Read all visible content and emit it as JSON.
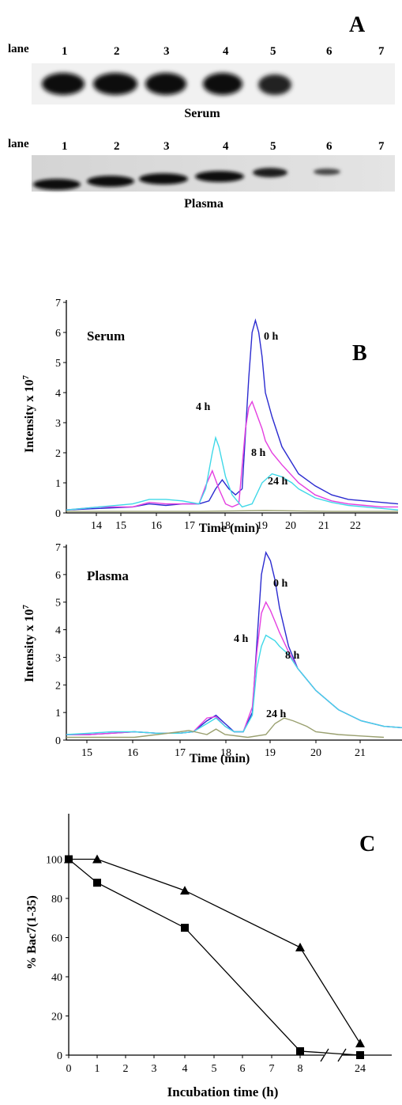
{
  "panel_a": {
    "letter": "A",
    "lane_label": "lane",
    "lanes": [
      "1",
      "2",
      "3",
      "4",
      "5",
      "6",
      "7"
    ],
    "serum_label": "Serum",
    "plasma_label": "Plasma"
  },
  "chart_data": [
    {
      "type": "line",
      "panel": "B",
      "panel_letter": "B",
      "inset_label": "Serum",
      "xlabel": "Time (min)",
      "ylabel": "Intensity x 10",
      "ylabel_exp": "7",
      "x_tick_labels": [
        "14",
        "15",
        "16",
        "17",
        "18",
        "19",
        "20",
        "21",
        "22"
      ],
      "y_ticks": [
        0,
        1,
        2,
        3,
        4,
        5,
        6,
        7
      ],
      "xlim": [
        13,
        23
      ],
      "ylim": [
        0,
        7
      ],
      "colors": {
        "0 h": "#2b2bd0",
        "4 h": "#e43fe0",
        "8 h": "#3fd8e8",
        "24 h": "#9aa070"
      },
      "series": [
        {
          "name": "0 h",
          "x": [
            13,
            14,
            15,
            15.5,
            16,
            16.5,
            17,
            17.3,
            17.5,
            17.7,
            17.9,
            18.1,
            18.3,
            18.5,
            18.6,
            18.7,
            18.8,
            18.9,
            19.0,
            19.2,
            19.5,
            20,
            20.5,
            21,
            21.5,
            22,
            22.5,
            23
          ],
          "y": [
            0.1,
            0.15,
            0.2,
            0.3,
            0.25,
            0.3,
            0.3,
            0.4,
            0.8,
            1.1,
            0.8,
            0.6,
            0.8,
            4.5,
            6.0,
            6.4,
            6.0,
            5.2,
            4.0,
            3.2,
            2.2,
            1.3,
            0.9,
            0.6,
            0.45,
            0.4,
            0.35,
            0.3
          ]
        },
        {
          "name": "4 h",
          "x": [
            13,
            14,
            15,
            15.5,
            16,
            16.5,
            17,
            17.2,
            17.4,
            17.6,
            17.8,
            18.0,
            18.2,
            18.4,
            18.5,
            18.6,
            18.7,
            18.8,
            18.9,
            19.0,
            19.2,
            19.5,
            20,
            20.5,
            21,
            21.5,
            22,
            22.5,
            23
          ],
          "y": [
            0.1,
            0.2,
            0.2,
            0.35,
            0.3,
            0.3,
            0.3,
            0.9,
            1.4,
            0.8,
            0.3,
            0.2,
            0.3,
            2.8,
            3.5,
            3.7,
            3.4,
            3.1,
            2.8,
            2.4,
            2.0,
            1.6,
            1.0,
            0.6,
            0.4,
            0.3,
            0.25,
            0.2,
            0.2
          ]
        },
        {
          "name": "8 h",
          "x": [
            13,
            14,
            15,
            15.5,
            16,
            16.5,
            17,
            17.2,
            17.4,
            17.5,
            17.6,
            17.8,
            18.0,
            18.3,
            18.6,
            18.9,
            19.2,
            19.5,
            19.8,
            20,
            20.5,
            21,
            21.5,
            22,
            22.5,
            23
          ],
          "y": [
            0.1,
            0.2,
            0.3,
            0.45,
            0.45,
            0.4,
            0.3,
            0.8,
            2.0,
            2.5,
            2.2,
            1.2,
            0.6,
            0.2,
            0.3,
            1.0,
            1.3,
            1.2,
            1.0,
            0.8,
            0.5,
            0.35,
            0.25,
            0.2,
            0.15,
            0.1
          ]
        },
        {
          "name": "24 h",
          "x": [
            13,
            15,
            17,
            19,
            21,
            23
          ],
          "y": [
            0.05,
            0.05,
            0.05,
            0.08,
            0.05,
            0.05
          ]
        }
      ],
      "line_labels": [
        "0 h",
        "4 h",
        "8 h",
        "24 h"
      ]
    },
    {
      "type": "line",
      "panel": "B",
      "inset_label": "Plasma",
      "xlabel": "Time (min)",
      "ylabel": "Intensity x 10",
      "ylabel_exp": "7",
      "x_tick_labels": [
        "15",
        "16",
        "17",
        "18",
        "19",
        "20",
        "21"
      ],
      "y_ticks": [
        0,
        1,
        2,
        3,
        4,
        5,
        6,
        7
      ],
      "xlim": [
        14.5,
        21.9
      ],
      "ylim": [
        0,
        7
      ],
      "series": [
        {
          "name": "0 h",
          "x": [
            14.5,
            15,
            15.5,
            16,
            16.5,
            17,
            17.3,
            17.6,
            17.8,
            18.0,
            18.2,
            18.4,
            18.6,
            18.7,
            18.8,
            18.9,
            19.0,
            19.1,
            19.2,
            19.4,
            19.6,
            20,
            20.5,
            21,
            21.5,
            21.9
          ],
          "y": [
            0.2,
            0.2,
            0.25,
            0.3,
            0.25,
            0.25,
            0.3,
            0.7,
            0.9,
            0.6,
            0.3,
            0.3,
            1.0,
            3.5,
            6.0,
            6.8,
            6.5,
            5.8,
            4.8,
            3.4,
            2.6,
            1.8,
            1.1,
            0.7,
            0.5,
            0.45
          ]
        },
        {
          "name": "4 h",
          "x": [
            14.5,
            15,
            15.5,
            16,
            16.5,
            17,
            17.3,
            17.6,
            17.8,
            18.0,
            18.2,
            18.4,
            18.6,
            18.7,
            18.8,
            18.9,
            19.0,
            19.1,
            19.2,
            19.4,
            19.6,
            20,
            20.5,
            21,
            21.5,
            21.9
          ],
          "y": [
            0.2,
            0.2,
            0.25,
            0.3,
            0.25,
            0.25,
            0.3,
            0.8,
            0.85,
            0.5,
            0.3,
            0.3,
            1.2,
            3.2,
            4.6,
            5.0,
            4.7,
            4.3,
            3.9,
            3.2,
            2.6,
            1.8,
            1.1,
            0.7,
            0.5,
            0.45
          ]
        },
        {
          "name": "8 h",
          "x": [
            14.5,
            15,
            15.5,
            16,
            16.5,
            17,
            17.3,
            17.6,
            17.8,
            18.0,
            18.2,
            18.4,
            18.6,
            18.7,
            18.8,
            18.9,
            19.0,
            19.1,
            19.2,
            19.4,
            19.6,
            20,
            20.5,
            21,
            21.5,
            21.9
          ],
          "y": [
            0.2,
            0.25,
            0.3,
            0.3,
            0.25,
            0.25,
            0.3,
            0.6,
            0.8,
            0.5,
            0.3,
            0.3,
            0.9,
            2.6,
            3.4,
            3.8,
            3.7,
            3.6,
            3.4,
            3.1,
            2.6,
            1.8,
            1.1,
            0.7,
            0.5,
            0.45
          ]
        },
        {
          "name": "24 h",
          "x": [
            14.5,
            15,
            16,
            17,
            17.2,
            17.6,
            17.8,
            18,
            18.5,
            18.9,
            19.1,
            19.3,
            19.5,
            19.8,
            20,
            20.5,
            21,
            21.5
          ],
          "y": [
            0.1,
            0.1,
            0.1,
            0.3,
            0.35,
            0.2,
            0.4,
            0.2,
            0.1,
            0.2,
            0.6,
            0.8,
            0.7,
            0.5,
            0.3,
            0.2,
            0.15,
            0.1
          ]
        }
      ],
      "line_labels": [
        "0 h",
        "4 h",
        "8 h",
        "24 h"
      ]
    },
    {
      "type": "line",
      "panel": "C",
      "panel_letter": "C",
      "xlabel": "Incubation time (h)",
      "ylabel": "% Bac7(1-35)",
      "x_tick_labels": [
        "0",
        "1",
        "2",
        "3",
        "4",
        "5",
        "6",
        "7",
        "8",
        "24"
      ],
      "y_ticks": [
        0,
        20,
        40,
        60,
        80,
        100
      ],
      "ylim": [
        0,
        100
      ],
      "axis_break": "between 8 and 24",
      "series": [
        {
          "marker": "triangle",
          "x": [
            0,
            1,
            4,
            8,
            24
          ],
          "y": [
            100,
            100,
            84,
            55,
            6
          ]
        },
        {
          "marker": "square",
          "x": [
            0,
            1,
            4,
            8,
            24
          ],
          "y": [
            100,
            88,
            65,
            2,
            0
          ]
        }
      ]
    }
  ]
}
